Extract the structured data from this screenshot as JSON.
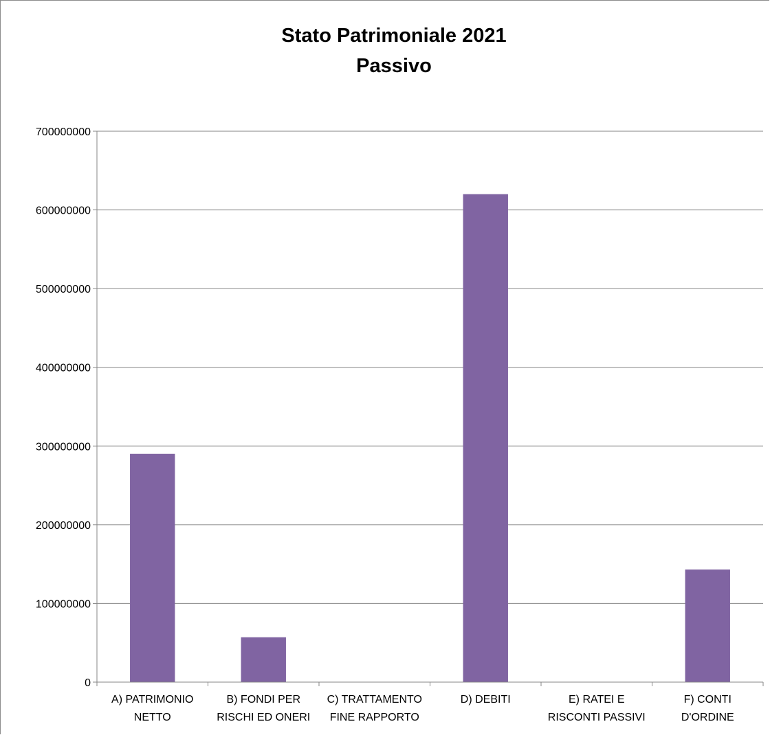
{
  "chart_data": {
    "type": "bar",
    "title": "Stato Patrimoniale 2021",
    "subtitle": "Passivo",
    "categories": [
      [
        "A) PATRIMONIO",
        "NETTO"
      ],
      [
        "B) FONDI PER",
        "RISCHI ED ONERI"
      ],
      [
        "C) TRATTAMENTO",
        "FINE RAPPORTO"
      ],
      [
        "D) DEBITI"
      ],
      [
        "E) RATEI E",
        "RISCONTI PASSIVI"
      ],
      [
        "F) CONTI",
        "D'ORDINE"
      ]
    ],
    "values": [
      290000000,
      57000000,
      0,
      620000000,
      0,
      143000000
    ],
    "ylim": [
      0,
      700000000
    ],
    "yticks": [
      "0",
      "100000000",
      "200000000",
      "300000000",
      "400000000",
      "500000000",
      "600000000",
      "700000000"
    ],
    "grid": true,
    "legend": "none",
    "bar_color": "#8064a2",
    "grid_color": "#868686"
  }
}
